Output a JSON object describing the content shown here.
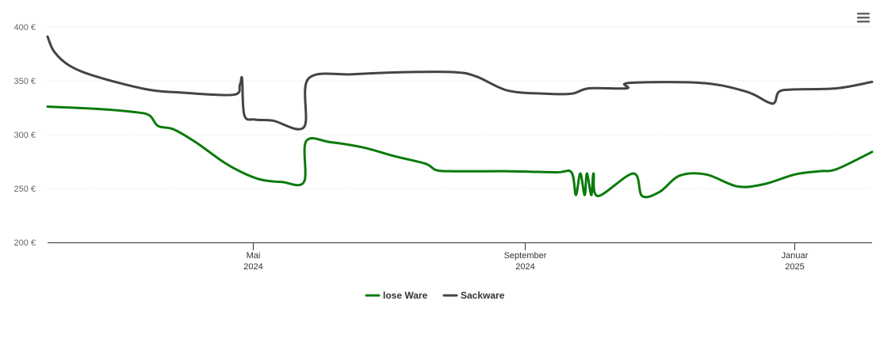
{
  "chart_data": {
    "type": "line",
    "title": "",
    "xlabel": "",
    "ylabel": "",
    "ylim": [
      200,
      400
    ],
    "yticks": [
      {
        "value": 200,
        "label": "200 €"
      },
      {
        "value": 250,
        "label": "250 €"
      },
      {
        "value": 300,
        "label": "300 €"
      },
      {
        "value": 350,
        "label": "350 €"
      },
      {
        "value": 400,
        "label": "400 €"
      }
    ],
    "xrange": [
      "2024-01-29",
      "2025-02-05"
    ],
    "xticks": [
      {
        "date": "2024-05-01",
        "label": "Mai",
        "sublabel": "2024"
      },
      {
        "date": "2024-09-01",
        "label": "September",
        "sublabel": "2024"
      },
      {
        "date": "2025-01-01",
        "label": "Januar",
        "sublabel": "2025"
      }
    ],
    "grid": true,
    "legend_position": "bottom-center",
    "series": [
      {
        "name": "lose Ware",
        "color": "#0b7a0b",
        "points": [
          [
            "2024-01-29",
            326
          ],
          [
            "2024-02-20",
            324
          ],
          [
            "2024-03-08",
            321
          ],
          [
            "2024-03-15",
            318
          ],
          [
            "2024-03-19",
            308
          ],
          [
            "2024-03-26",
            305
          ],
          [
            "2024-04-05",
            293
          ],
          [
            "2024-04-18",
            274
          ],
          [
            "2024-04-28",
            263
          ],
          [
            "2024-05-05",
            258
          ],
          [
            "2024-05-14",
            256
          ],
          [
            "2024-05-24",
            256
          ],
          [
            "2024-05-25",
            294
          ],
          [
            "2024-06-05",
            293
          ],
          [
            "2024-06-20",
            288
          ],
          [
            "2024-07-04",
            280
          ],
          [
            "2024-07-18",
            273
          ],
          [
            "2024-07-23",
            267
          ],
          [
            "2024-08-01",
            266
          ],
          [
            "2024-08-25",
            266
          ],
          [
            "2024-09-15",
            265
          ],
          [
            "2024-09-22",
            265
          ],
          [
            "2024-09-24",
            244
          ],
          [
            "2024-09-26",
            264
          ],
          [
            "2024-09-28",
            244
          ],
          [
            "2024-09-29",
            264
          ],
          [
            "2024-10-01",
            244
          ],
          [
            "2024-10-02",
            264
          ],
          [
            "2024-10-04",
            243
          ],
          [
            "2024-10-20",
            264
          ],
          [
            "2024-10-24",
            243
          ],
          [
            "2024-11-01",
            247
          ],
          [
            "2024-11-10",
            262
          ],
          [
            "2024-11-22",
            263
          ],
          [
            "2024-12-06",
            252
          ],
          [
            "2024-12-18",
            254
          ],
          [
            "2025-01-01",
            263
          ],
          [
            "2025-01-12",
            266
          ],
          [
            "2025-01-20",
            268
          ],
          [
            "2025-02-05",
            284
          ]
        ]
      },
      {
        "name": "Sackware",
        "color": "#434348",
        "points": [
          [
            "2024-01-29",
            391
          ],
          [
            "2024-02-01",
            377
          ],
          [
            "2024-02-08",
            364
          ],
          [
            "2024-02-20",
            354
          ],
          [
            "2024-03-14",
            342
          ],
          [
            "2024-03-30",
            339
          ],
          [
            "2024-04-22",
            337
          ],
          [
            "2024-04-25",
            346
          ],
          [
            "2024-04-26",
            352
          ],
          [
            "2024-04-27",
            318
          ],
          [
            "2024-05-02",
            314
          ],
          [
            "2024-05-10",
            313
          ],
          [
            "2024-05-24",
            307
          ],
          [
            "2024-05-26",
            352
          ],
          [
            "2024-06-15",
            356
          ],
          [
            "2024-07-08",
            358
          ],
          [
            "2024-07-31",
            358
          ],
          [
            "2024-08-10",
            354
          ],
          [
            "2024-08-24",
            341
          ],
          [
            "2024-09-10",
            338
          ],
          [
            "2024-09-22",
            338
          ],
          [
            "2024-09-30",
            343
          ],
          [
            "2024-10-17",
            343
          ],
          [
            "2024-10-18",
            348
          ],
          [
            "2024-11-20",
            348
          ],
          [
            "2024-12-10",
            340
          ],
          [
            "2024-12-20",
            330
          ],
          [
            "2024-12-23",
            330
          ],
          [
            "2024-12-25",
            340
          ],
          [
            "2025-01-01",
            342
          ],
          [
            "2025-01-20",
            343
          ],
          [
            "2025-02-05",
            349
          ]
        ]
      }
    ]
  },
  "menu": {
    "icon": "hamburger-menu-icon"
  }
}
